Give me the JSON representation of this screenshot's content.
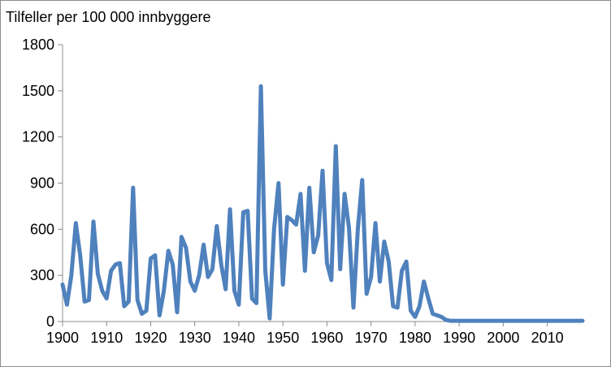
{
  "chart_data": {
    "type": "line",
    "title": "Tilfeller per 100 000 innbyggere",
    "xlabel": "",
    "ylabel": "",
    "xlim": [
      1900,
      2018
    ],
    "ylim": [
      0,
      1800
    ],
    "grid": false,
    "legend": "none",
    "line_color": "#4f81bd",
    "y_ticks": [
      "0",
      "300",
      "600",
      "900",
      "1200",
      "1500",
      "1800"
    ],
    "x_ticks": [
      "1900",
      "1910",
      "1920",
      "1930",
      "1940",
      "1950",
      "1960",
      "1970",
      "1980",
      "1990",
      "2000",
      "2010"
    ],
    "series": [
      {
        "x": [
          1900,
          1901,
          1902,
          1903,
          1904,
          1905,
          1906,
          1907,
          1908,
          1909,
          1910,
          1911,
          1912,
          1913,
          1914,
          1915,
          1916,
          1917,
          1918,
          1919,
          1920,
          1921,
          1922,
          1923,
          1924,
          1925,
          1926,
          1927,
          1928,
          1929,
          1930,
          1931,
          1932,
          1933,
          1934,
          1935,
          1936,
          1937,
          1938,
          1939,
          1940,
          1941,
          1942,
          1943,
          1944,
          1945,
          1946,
          1947,
          1948,
          1949,
          1950,
          1951,
          1952,
          1953,
          1954,
          1955,
          1956,
          1957,
          1958,
          1959,
          1960,
          1961,
          1962,
          1963,
          1964,
          1965,
          1966,
          1967,
          1968,
          1969,
          1970,
          1971,
          1972,
          1973,
          1974,
          1975,
          1976,
          1977,
          1978,
          1979,
          1980,
          1981,
          1982,
          1983,
          1984,
          1985,
          1986,
          1987,
          1988,
          1989,
          1990,
          1991,
          1992,
          1993,
          1994,
          1995,
          1996,
          1997,
          1998,
          1999,
          2000,
          2001,
          2002,
          2003,
          2004,
          2005,
          2006,
          2007,
          2008,
          2009,
          2010,
          2011,
          2012,
          2013,
          2014,
          2015,
          2016,
          2017,
          2018
        ],
        "values": [
          240,
          110,
          300,
          640,
          430,
          130,
          140,
          650,
          310,
          200,
          150,
          330,
          370,
          380,
          100,
          130,
          870,
          140,
          50,
          70,
          410,
          430,
          40,
          200,
          460,
          370,
          60,
          550,
          480,
          260,
          200,
          300,
          500,
          290,
          340,
          620,
          370,
          210,
          730,
          200,
          110,
          710,
          720,
          150,
          120,
          1530,
          330,
          20,
          600,
          900,
          240,
          680,
          660,
          630,
          830,
          330,
          870,
          450,
          560,
          980,
          380,
          270,
          1140,
          340,
          830,
          610,
          90,
          600,
          920,
          180,
          290,
          640,
          260,
          520,
          390,
          100,
          90,
          330,
          390,
          70,
          30,
          100,
          260,
          150,
          50,
          40,
          30,
          10,
          5,
          5,
          5,
          5,
          5,
          5,
          5,
          5,
          5,
          5,
          5,
          5,
          5,
          5,
          5,
          5,
          5,
          5,
          5,
          5,
          5,
          5,
          5,
          5,
          5,
          5,
          5,
          5,
          5,
          5,
          5
        ]
      }
    ]
  }
}
